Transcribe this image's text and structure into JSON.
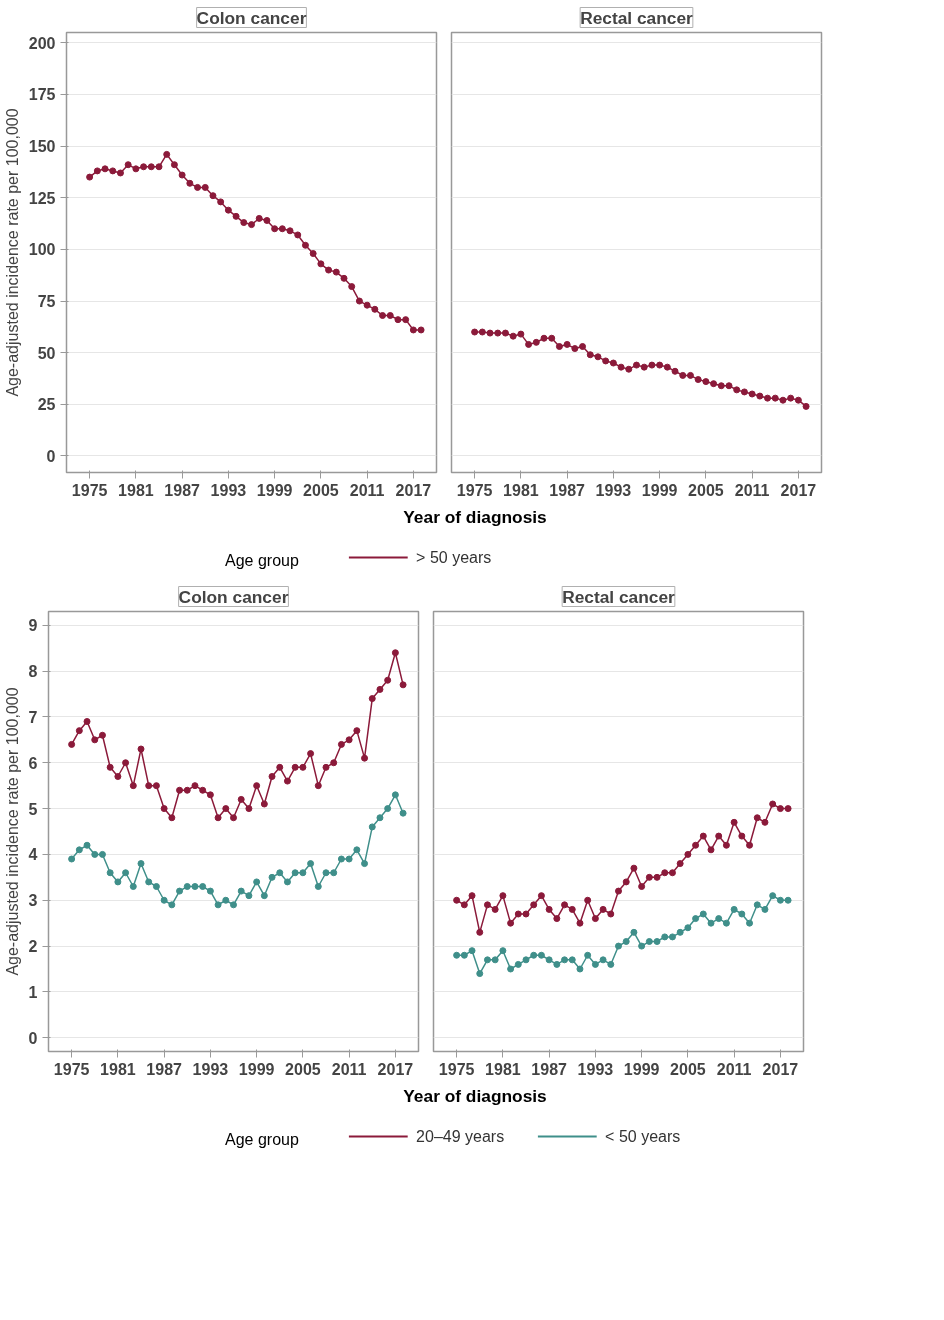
{
  "chart_data": [
    {
      "type": "line",
      "title": "Colon cancer",
      "ylabel": "Age-adjusted incidence rate per 100,000",
      "xlabel": "Year of diagnosis",
      "legend_title": "Age group",
      "legend": "bottom",
      "grid": "y",
      "marker": "circle",
      "xlim": [
        1972,
        2020
      ],
      "xticks": [
        1975,
        1981,
        1987,
        1993,
        1999,
        2005,
        2011,
        2017
      ],
      "ylim": [
        -8,
        205
      ],
      "yticks": [
        0,
        25,
        50,
        75,
        100,
        125,
        150,
        175,
        200
      ],
      "x": [
        1975,
        1976,
        1977,
        1978,
        1979,
        1980,
        1981,
        1982,
        1983,
        1984,
        1985,
        1986,
        1987,
        1988,
        1989,
        1990,
        1991,
        1992,
        1993,
        1994,
        1995,
        1996,
        1997,
        1998,
        1999,
        2000,
        2001,
        2002,
        2003,
        2004,
        2005,
        2006,
        2007,
        2008,
        2009,
        2010,
        2011,
        2012,
        2013,
        2014,
        2015,
        2016,
        2017,
        2018
      ],
      "series": [
        {
          "name": "> 50 years",
          "color": "#8b1a3a",
          "values": [
            135,
            138,
            139,
            138,
            137,
            141,
            139,
            140,
            140,
            140,
            146,
            141,
            136,
            132,
            130,
            130,
            126,
            123,
            119,
            116,
            113,
            112,
            115,
            114,
            110,
            110,
            109,
            107,
            102,
            98,
            93,
            90,
            89,
            86,
            82,
            75,
            73,
            71,
            68,
            68,
            66,
            66,
            61,
            61
          ]
        }
      ]
    },
    {
      "type": "line",
      "title": "Rectal cancer",
      "grid": "y",
      "marker": "circle",
      "tick_labels": "x",
      "xlim": [
        1972,
        2020
      ],
      "xticks": [
        1975,
        1981,
        1987,
        1993,
        1999,
        2005,
        2011,
        2017
      ],
      "ylim": [
        -8,
        205
      ],
      "yticks": [
        0,
        25,
        50,
        75,
        100,
        125,
        150,
        175,
        200
      ],
      "x": [
        1975,
        1976,
        1977,
        1978,
        1979,
        1980,
        1981,
        1982,
        1983,
        1984,
        1985,
        1986,
        1987,
        1988,
        1989,
        1990,
        1991,
        1992,
        1993,
        1994,
        1995,
        1996,
        1997,
        1998,
        1999,
        2000,
        2001,
        2002,
        2003,
        2004,
        2005,
        2006,
        2007,
        2008,
        2009,
        2010,
        2011,
        2012,
        2013,
        2014,
        2015,
        2016,
        2017,
        2018
      ],
      "series": [
        {
          "color": "#8b1a3a",
          "values": [
            60,
            60,
            59.5,
            59.5,
            59.5,
            58,
            59,
            54,
            55,
            57,
            57,
            53,
            54,
            52,
            53,
            49,
            48,
            46,
            45,
            43,
            42,
            44,
            43,
            44,
            44,
            43,
            41,
            39,
            39,
            37,
            36,
            35,
            34,
            34,
            32,
            31,
            30,
            29,
            28,
            28,
            27,
            28,
            27,
            24
          ]
        }
      ]
    },
    {
      "type": "line",
      "title": "Colon cancer",
      "ylabel": "Age-adjusted incidence rate per 100,000",
      "xlabel": "Year of diagnosis",
      "legend_title": "Age group",
      "legend": "bottom",
      "grid": "y",
      "marker": "circle",
      "xlim": [
        1972,
        2020
      ],
      "xticks": [
        1975,
        1981,
        1987,
        1993,
        1999,
        2005,
        2011,
        2017
      ],
      "ylim": [
        -0.3,
        9.3
      ],
      "yticks": [
        0,
        1,
        2,
        3,
        4,
        5,
        6,
        7,
        8,
        9
      ],
      "x": [
        1975,
        1976,
        1977,
        1978,
        1979,
        1980,
        1981,
        1982,
        1983,
        1984,
        1985,
        1986,
        1987,
        1988,
        1989,
        1990,
        1991,
        1992,
        1993,
        1994,
        1995,
        1996,
        1997,
        1998,
        1999,
        2000,
        2001,
        2002,
        2003,
        2004,
        2005,
        2006,
        2007,
        2008,
        2009,
        2010,
        2011,
        2012,
        2013,
        2014,
        2015,
        2016,
        2017,
        2018
      ],
      "series": [
        {
          "name": "20–49 years",
          "color": "#8b1a3a",
          "values": [
            6.4,
            6.7,
            6.9,
            6.5,
            6.6,
            5.9,
            5.7,
            6.0,
            5.5,
            6.3,
            5.5,
            5.5,
            5.0,
            4.8,
            5.4,
            5.4,
            5.5,
            5.4,
            5.3,
            4.8,
            5.0,
            4.8,
            5.2,
            5.0,
            5.5,
            5.1,
            5.7,
            5.9,
            5.6,
            5.9,
            5.9,
            6.2,
            5.5,
            5.9,
            6.0,
            6.4,
            6.5,
            6.7,
            6.1,
            7.4,
            7.6,
            7.8,
            8.4,
            7.7
          ]
        },
        {
          "name": "< 50 years",
          "color": "#3f8f8a",
          "values": [
            3.9,
            4.1,
            4.2,
            4.0,
            4.0,
            3.6,
            3.4,
            3.6,
            3.3,
            3.8,
            3.4,
            3.3,
            3.0,
            2.9,
            3.2,
            3.3,
            3.3,
            3.3,
            3.2,
            2.9,
            3.0,
            2.9,
            3.2,
            3.1,
            3.4,
            3.1,
            3.5,
            3.6,
            3.4,
            3.6,
            3.6,
            3.8,
            3.3,
            3.6,
            3.6,
            3.9,
            3.9,
            4.1,
            3.8,
            4.6,
            4.8,
            5.0,
            5.3,
            4.9
          ]
        }
      ]
    },
    {
      "type": "line",
      "title": "Rectal cancer",
      "grid": "y",
      "marker": "circle",
      "tick_labels": "x",
      "xlim": [
        1972,
        2020
      ],
      "xticks": [
        1975,
        1981,
        1987,
        1993,
        1999,
        2005,
        2011,
        2017
      ],
      "ylim": [
        -0.3,
        9.3
      ],
      "yticks": [
        0,
        1,
        2,
        3,
        4,
        5,
        6,
        7,
        8,
        9
      ],
      "x": [
        1975,
        1976,
        1977,
        1978,
        1979,
        1980,
        1981,
        1982,
        1983,
        1984,
        1985,
        1986,
        1987,
        1988,
        1989,
        1990,
        1991,
        1992,
        1993,
        1994,
        1995,
        1996,
        1997,
        1998,
        1999,
        2000,
        2001,
        2002,
        2003,
        2004,
        2005,
        2006,
        2007,
        2008,
        2009,
        2010,
        2011,
        2012,
        2013,
        2014,
        2015,
        2016,
        2017,
        2018
      ],
      "series": [
        {
          "color": "#8b1a3a",
          "values": [
            3.0,
            2.9,
            3.1,
            2.3,
            2.9,
            2.8,
            3.1,
            2.5,
            2.7,
            2.7,
            2.9,
            3.1,
            2.8,
            2.6,
            2.9,
            2.8,
            2.5,
            3.0,
            2.6,
            2.8,
            2.7,
            3.2,
            3.4,
            3.7,
            3.3,
            3.5,
            3.5,
            3.6,
            3.6,
            3.8,
            4.0,
            4.2,
            4.4,
            4.1,
            4.4,
            4.2,
            4.7,
            4.4,
            4.2,
            4.8,
            4.7,
            5.1,
            5.0,
            5.0
          ]
        },
        {
          "color": "#3f8f8a",
          "values": [
            1.8,
            1.8,
            1.9,
            1.4,
            1.7,
            1.7,
            1.9,
            1.5,
            1.6,
            1.7,
            1.8,
            1.8,
            1.7,
            1.6,
            1.7,
            1.7,
            1.5,
            1.8,
            1.6,
            1.7,
            1.6,
            2.0,
            2.1,
            2.3,
            2.0,
            2.1,
            2.1,
            2.2,
            2.2,
            2.3,
            2.4,
            2.6,
            2.7,
            2.5,
            2.6,
            2.5,
            2.8,
            2.7,
            2.5,
            2.9,
            2.8,
            3.1,
            3.0,
            3.0
          ]
        }
      ]
    }
  ]
}
